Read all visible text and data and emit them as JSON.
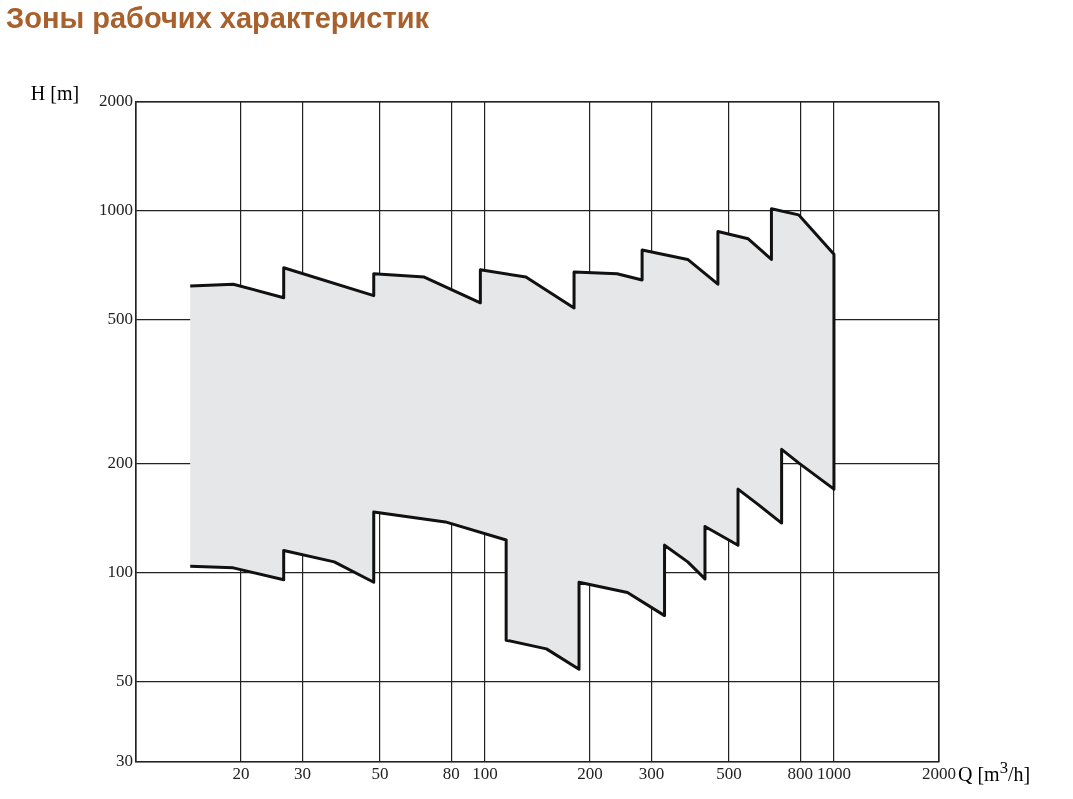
{
  "chart_data": {
    "type": "area",
    "title": "Зоны рабочих характеристик",
    "xlabel": "Q [m$^{3}$/h]",
    "ylabel": "H [m]",
    "log": "xy",
    "xlim": [
      10,
      2000
    ],
    "ylim": [
      30,
      2000
    ],
    "xticks": [
      20,
      30,
      50,
      80,
      100,
      200,
      300,
      500,
      800,
      1000,
      2000
    ],
    "yticks": [
      30,
      50,
      100,
      200,
      500,
      1000,
      2000
    ],
    "grid": true,
    "legend": false,
    "marker": "none",
    "series": [
      {
        "type": "area",
        "color": "#e6e7e8",
        "x": [
          14.3,
          19,
          26.5,
          26.5,
          48,
          48,
          67,
          97,
          97,
          131,
          180,
          180,
          239,
          282,
          282,
          381,
          465,
          465,
          568,
          662,
          662,
          792,
          1000,
          1000,
          792,
          708,
          708,
          607,
          531,
          531,
          427,
          427,
          381,
          327,
          327,
          256,
          186,
          186,
          150,
          115,
          115,
          77,
          48,
          48,
          37,
          26.5,
          26.5,
          19,
          14.3
        ],
        "values": [
          620,
          627,
          575,
          696,
          583,
          670,
          656,
          557,
          687,
          656,
          539,
          678,
          670,
          644,
          779,
          734,
          627,
          877,
          837,
          734,
          1013,
          975,
          759,
          170,
          201,
          219,
          137,
          154,
          170,
          119,
          134,
          96,
          107,
          119,
          76,
          88,
          94,
          54,
          61.5,
          65,
          123,
          138,
          147,
          94,
          107,
          115,
          95.5,
          103,
          104
        ]
      }
    ]
  }
}
